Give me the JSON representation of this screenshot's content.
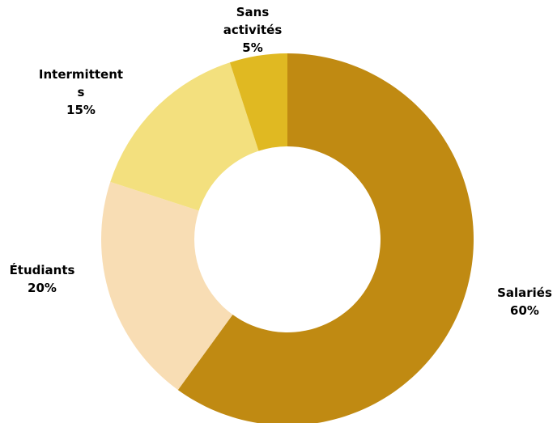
{
  "chart_data": {
    "type": "pie",
    "variant": "donut",
    "slices": [
      {
        "label_lines": [
          "Salariés"
        ],
        "value": 60,
        "value_label": "60%",
        "color": "#C08A12"
      },
      {
        "label_lines": [
          "Étudiants"
        ],
        "value": 20,
        "value_label": "20%",
        "color": "#F8DDB4"
      },
      {
        "label_lines": [
          "Intermittent",
          "s"
        ],
        "value": 15,
        "value_label": "15%",
        "color": "#F3E07E"
      },
      {
        "label_lines": [
          "Sans",
          "activités"
        ],
        "value": 5,
        "value_label": "5%",
        "color": "#E0B922"
      }
    ],
    "legend": "none",
    "labels": "outside, name and percentage"
  }
}
